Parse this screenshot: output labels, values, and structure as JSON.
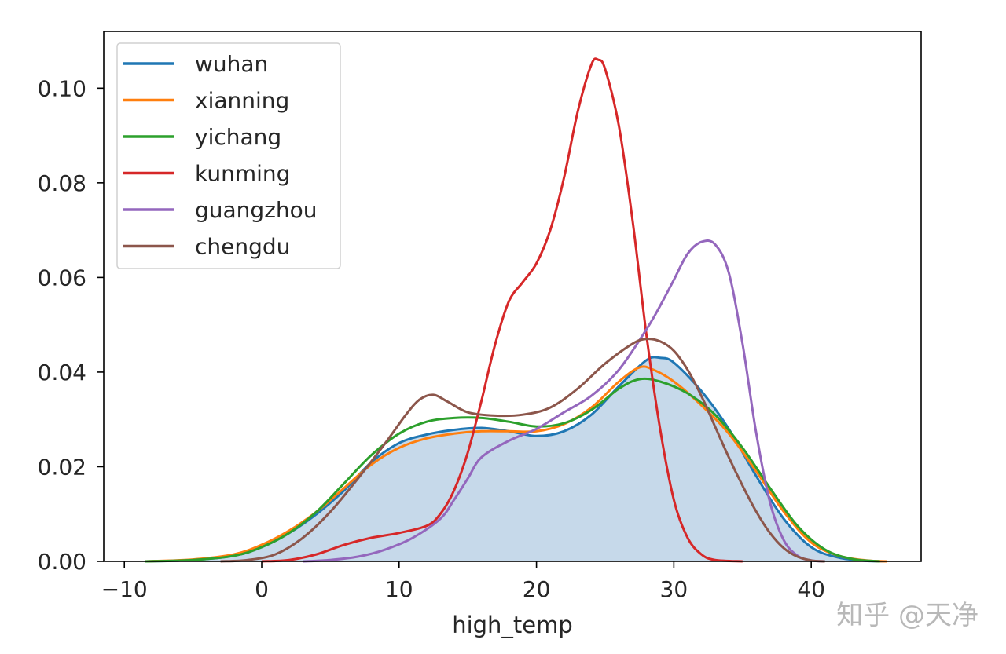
{
  "chart_data": {
    "type": "line",
    "title": "",
    "xlabel": "high_temp",
    "ylabel": "",
    "xlim": [
      -11.5,
      48
    ],
    "ylim": [
      0,
      0.112
    ],
    "xticks": [
      -10,
      0,
      10,
      20,
      30,
      40
    ],
    "xtick_labels": [
      "−10",
      "0",
      "10",
      "20",
      "30",
      "40"
    ],
    "yticks": [
      0.0,
      0.02,
      0.04,
      0.06,
      0.08,
      0.1
    ],
    "ytick_labels": [
      "0.00",
      "0.02",
      "0.04",
      "0.06",
      "0.08",
      "0.10"
    ],
    "grid": false,
    "legend_position": "top-left",
    "filled_series": "wuhan",
    "fill_color": "#c6d9ea",
    "series": [
      {
        "name": "wuhan",
        "color": "#1f77b4",
        "points": [
          [
            -8.5,
            0
          ],
          [
            -5,
            0.0003
          ],
          [
            -2,
            0.0012
          ],
          [
            0,
            0.003
          ],
          [
            2,
            0.006
          ],
          [
            4,
            0.01
          ],
          [
            6,
            0.015
          ],
          [
            8,
            0.021
          ],
          [
            10,
            0.025
          ],
          [
            12,
            0.0268
          ],
          [
            14,
            0.0278
          ],
          [
            16,
            0.0282
          ],
          [
            18,
            0.0275
          ],
          [
            20,
            0.0265
          ],
          [
            22,
            0.0275
          ],
          [
            24,
            0.031
          ],
          [
            26,
            0.037
          ],
          [
            28,
            0.0425
          ],
          [
            29,
            0.043
          ],
          [
            30,
            0.042
          ],
          [
            32,
            0.036
          ],
          [
            34,
            0.028
          ],
          [
            36,
            0.018
          ],
          [
            38,
            0.009
          ],
          [
            40,
            0.003
          ],
          [
            42,
            0.0008
          ],
          [
            44,
            0.0001
          ],
          [
            45.5,
            0
          ]
        ]
      },
      {
        "name": "xianning",
        "color": "#ff7f0e",
        "points": [
          [
            -8.5,
            0
          ],
          [
            -5,
            0.0004
          ],
          [
            -2,
            0.0015
          ],
          [
            0,
            0.0035
          ],
          [
            2,
            0.0065
          ],
          [
            4,
            0.0105
          ],
          [
            6,
            0.0155
          ],
          [
            8,
            0.0205
          ],
          [
            10,
            0.024
          ],
          [
            12,
            0.026
          ],
          [
            14,
            0.027
          ],
          [
            16,
            0.0275
          ],
          [
            18,
            0.0275
          ],
          [
            20,
            0.0275
          ],
          [
            22,
            0.029
          ],
          [
            24,
            0.0325
          ],
          [
            26,
            0.038
          ],
          [
            27.5,
            0.041
          ],
          [
            28.5,
            0.0405
          ],
          [
            30,
            0.038
          ],
          [
            32,
            0.033
          ],
          [
            34,
            0.027
          ],
          [
            36,
            0.019
          ],
          [
            38,
            0.0105
          ],
          [
            40,
            0.004
          ],
          [
            42,
            0.0012
          ],
          [
            44,
            0.0002
          ],
          [
            45.5,
            0
          ]
        ]
      },
      {
        "name": "yichang",
        "color": "#2ca02c",
        "points": [
          [
            -8.5,
            0
          ],
          [
            -5,
            0.0003
          ],
          [
            -2,
            0.0012
          ],
          [
            0,
            0.003
          ],
          [
            2,
            0.006
          ],
          [
            4,
            0.0105
          ],
          [
            6,
            0.0165
          ],
          [
            8,
            0.0225
          ],
          [
            10,
            0.027
          ],
          [
            12,
            0.0295
          ],
          [
            14,
            0.0303
          ],
          [
            16,
            0.0303
          ],
          [
            18,
            0.0295
          ],
          [
            20,
            0.0285
          ],
          [
            22,
            0.0292
          ],
          [
            24,
            0.032
          ],
          [
            26,
            0.0365
          ],
          [
            27.5,
            0.0385
          ],
          [
            29,
            0.038
          ],
          [
            31,
            0.0355
          ],
          [
            33,
            0.031
          ],
          [
            35,
            0.024
          ],
          [
            37,
            0.0155
          ],
          [
            39,
            0.0075
          ],
          [
            41,
            0.0025
          ],
          [
            43,
            0.0005
          ],
          [
            45,
            0
          ]
        ]
      },
      {
        "name": "kunming",
        "color": "#d62728",
        "points": [
          [
            0,
            0
          ],
          [
            2,
            0.0003
          ],
          [
            4,
            0.0015
          ],
          [
            6,
            0.0035
          ],
          [
            8,
            0.005
          ],
          [
            10,
            0.006
          ],
          [
            12,
            0.0075
          ],
          [
            13,
            0.01
          ],
          [
            14,
            0.015
          ],
          [
            15,
            0.023
          ],
          [
            16,
            0.034
          ],
          [
            17,
            0.046
          ],
          [
            18,
            0.055
          ],
          [
            19,
            0.059
          ],
          [
            20,
            0.063
          ],
          [
            21,
            0.07
          ],
          [
            22,
            0.081
          ],
          [
            23,
            0.095
          ],
          [
            24,
            0.105
          ],
          [
            24.5,
            0.106
          ],
          [
            25,
            0.104
          ],
          [
            26,
            0.092
          ],
          [
            27,
            0.072
          ],
          [
            28,
            0.048
          ],
          [
            29,
            0.028
          ],
          [
            30,
            0.013
          ],
          [
            31,
            0.005
          ],
          [
            32,
            0.0015
          ],
          [
            33,
            0.0003
          ],
          [
            35,
            0
          ]
        ]
      },
      {
        "name": "guangzhou",
        "color": "#9467bd",
        "points": [
          [
            3,
            0
          ],
          [
            5,
            0.0003
          ],
          [
            7,
            0.001
          ],
          [
            9,
            0.0025
          ],
          [
            11,
            0.005
          ],
          [
            13,
            0.009
          ],
          [
            14,
            0.013
          ],
          [
            15,
            0.0175
          ],
          [
            16,
            0.022
          ],
          [
            18,
            0.0255
          ],
          [
            20,
            0.028
          ],
          [
            22,
            0.0315
          ],
          [
            24,
            0.035
          ],
          [
            26,
            0.0405
          ],
          [
            28,
            0.049
          ],
          [
            29,
            0.054
          ],
          [
            30,
            0.0595
          ],
          [
            31,
            0.065
          ],
          [
            32,
            0.0675
          ],
          [
            33,
            0.067
          ],
          [
            34,
            0.061
          ],
          [
            35,
            0.046
          ],
          [
            36,
            0.027
          ],
          [
            37,
            0.0125
          ],
          [
            38,
            0.0045
          ],
          [
            39,
            0.0012
          ],
          [
            40,
            0.0002
          ],
          [
            41,
            0
          ]
        ]
      },
      {
        "name": "chengdu",
        "color": "#8c564b",
        "points": [
          [
            -3,
            0
          ],
          [
            -1,
            0.0003
          ],
          [
            1,
            0.0015
          ],
          [
            3,
            0.005
          ],
          [
            5,
            0.0105
          ],
          [
            7,
            0.0175
          ],
          [
            9,
            0.025
          ],
          [
            10.5,
            0.031
          ],
          [
            11.5,
            0.0342
          ],
          [
            12.5,
            0.0352
          ],
          [
            13.5,
            0.0338
          ],
          [
            15,
            0.0315
          ],
          [
            17,
            0.0308
          ],
          [
            19,
            0.031
          ],
          [
            21,
            0.0325
          ],
          [
            23,
            0.0365
          ],
          [
            25,
            0.0418
          ],
          [
            27,
            0.046
          ],
          [
            28,
            0.047
          ],
          [
            29,
            0.0465
          ],
          [
            30,
            0.0445
          ],
          [
            31,
            0.0405
          ],
          [
            32,
            0.035
          ],
          [
            33,
            0.0285
          ],
          [
            34,
            0.022
          ],
          [
            35,
            0.016
          ],
          [
            36,
            0.0105
          ],
          [
            37,
            0.006
          ],
          [
            38,
            0.0028
          ],
          [
            39,
            0.001
          ],
          [
            40,
            0.0002
          ],
          [
            41,
            0
          ]
        ]
      }
    ]
  },
  "watermark": "知乎 @天净"
}
